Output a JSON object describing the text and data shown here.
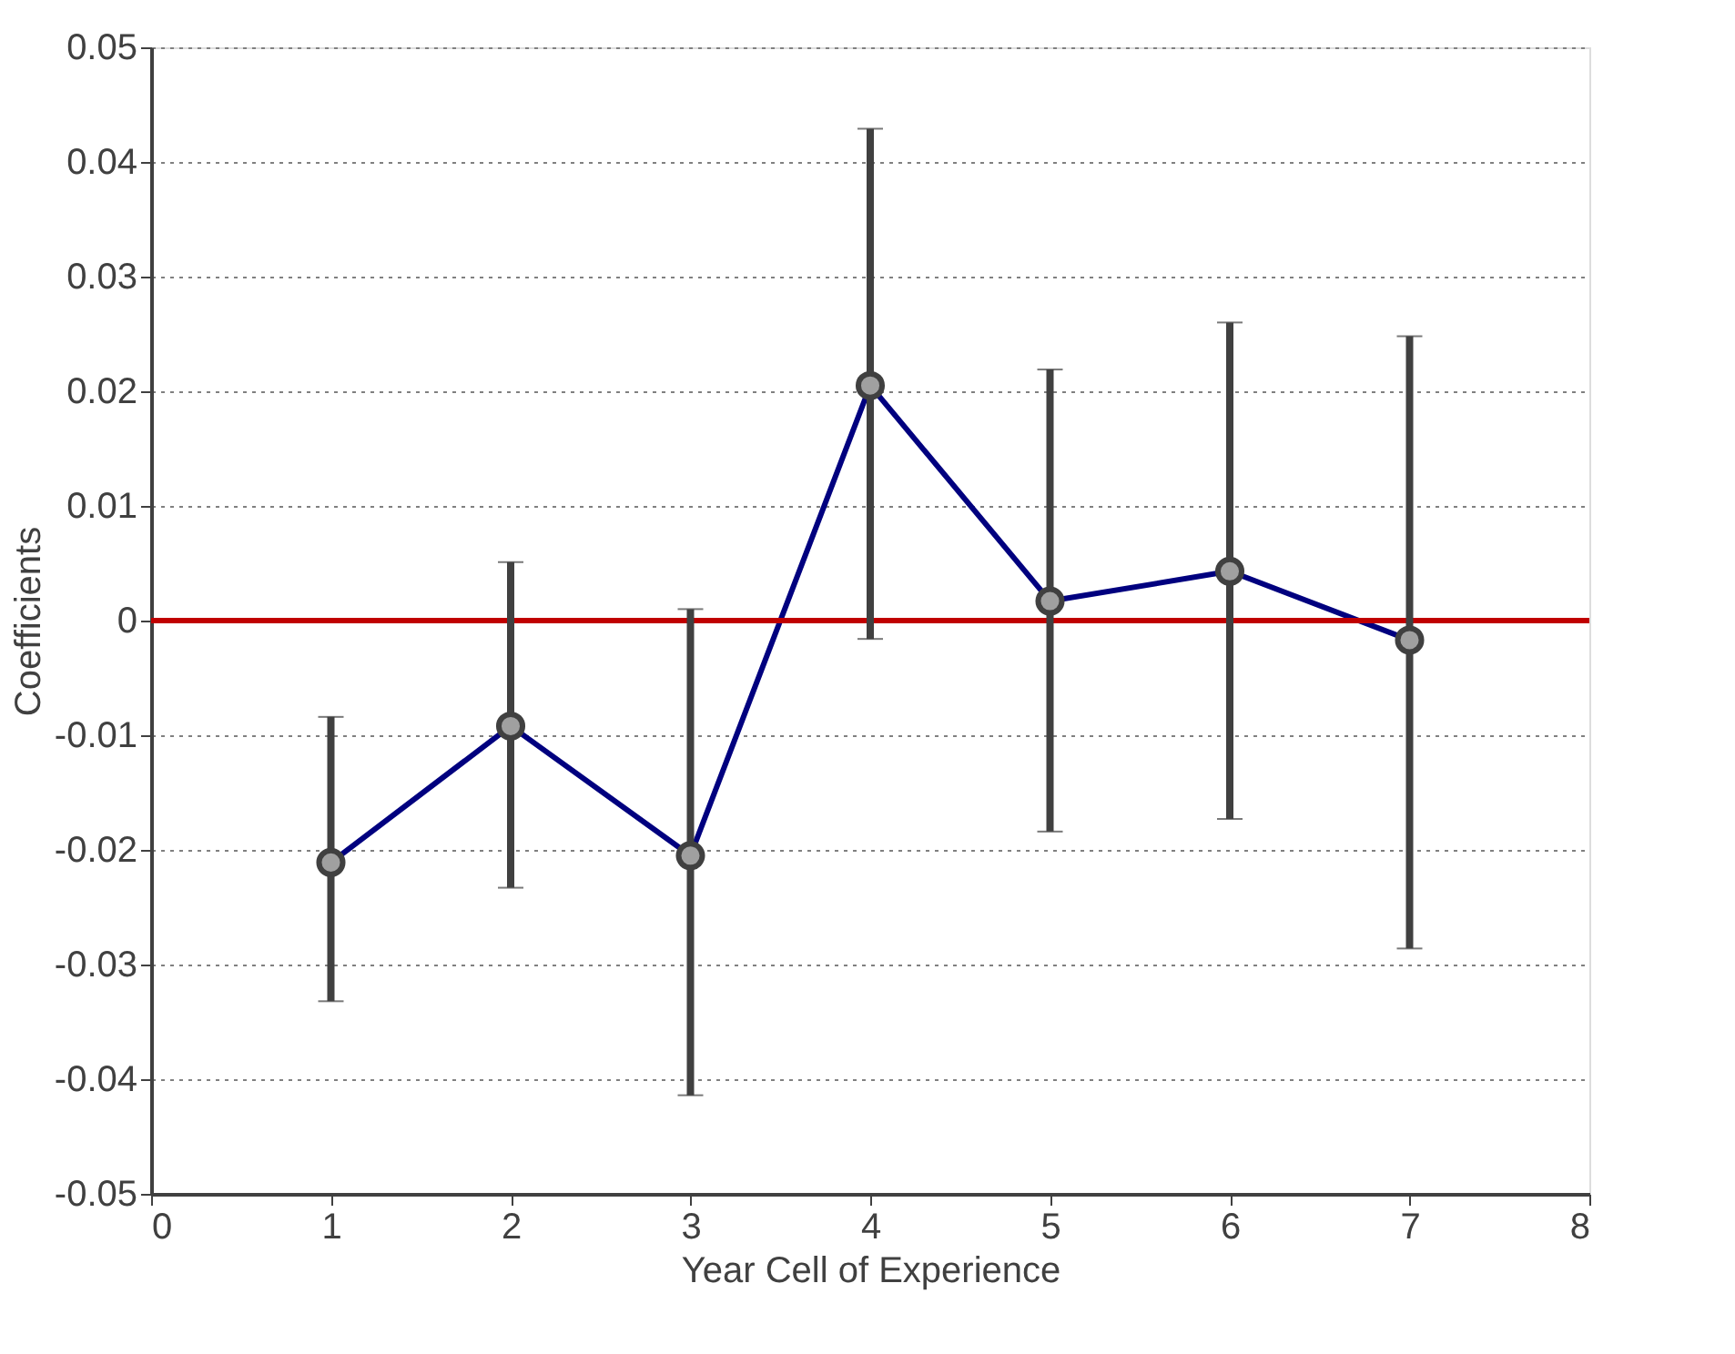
{
  "chart_data": {
    "type": "line",
    "xlabel": "Year Cell of Experience",
    "ylabel": "Coefficients",
    "x": [
      1,
      2,
      3,
      4,
      5,
      6,
      7
    ],
    "series": [
      {
        "color": "#00007f",
        "values": [
          -0.0211,
          -0.0092,
          -0.0205,
          0.0205,
          0.0017,
          0.0043,
          -0.0017
        ],
        "errors": [
          [
            -0.0332,
            -0.0084
          ],
          [
            -0.0233,
            0.0051
          ],
          [
            -0.0414,
            0.001
          ],
          [
            -0.0016,
            0.0429
          ],
          [
            -0.0184,
            0.0219
          ],
          [
            -0.0173,
            0.026
          ],
          [
            -0.0286,
            0.0248
          ]
        ]
      }
    ],
    "xlim": [
      0,
      8
    ],
    "xticks": [
      0,
      1,
      2,
      3,
      4,
      5,
      6,
      7,
      8
    ],
    "ylim": [
      -0.05,
      0.05
    ],
    "yticks": [
      -0.05,
      -0.04,
      -0.03,
      -0.02,
      -0.01,
      0,
      0.01,
      0.02,
      0.03,
      0.04,
      0.05
    ],
    "ref_lines": [
      {
        "axis": "y",
        "value": 0,
        "color": "#c00000"
      }
    ],
    "grid": "y",
    "marker": "circle",
    "line_style": "solid"
  }
}
